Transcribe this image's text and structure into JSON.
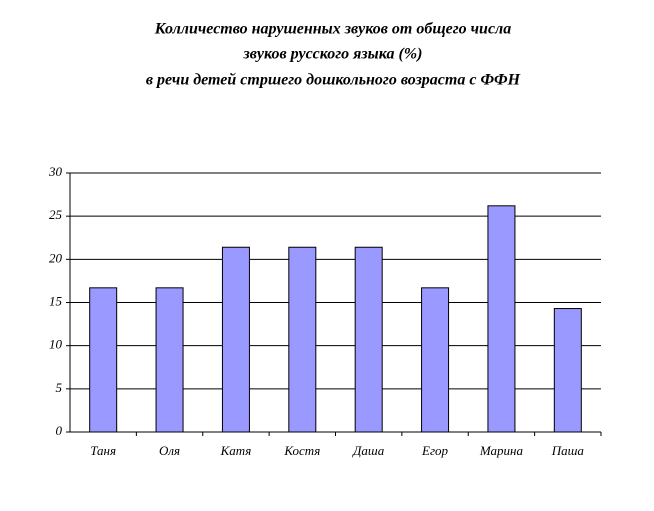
{
  "chart_data": {
    "type": "bar",
    "title": [
      "Колличество нарушенных звуков от общего числа",
      "звуков русского языка (%)",
      "в речи детей стршего дошкольного возраста с ФФН"
    ],
    "categories": [
      "Таня",
      "Оля",
      "Катя",
      "Костя",
      "Даша",
      "Егор",
      "Марина",
      "Паша"
    ],
    "values": [
      16.7,
      16.7,
      21.4,
      21.4,
      21.4,
      16.7,
      26.2,
      14.3
    ],
    "color": "#9999ff",
    "ylim": [
      0,
      30
    ],
    "yticks": [
      0,
      5,
      10,
      15,
      20,
      25,
      30
    ],
    "grid": true
  }
}
